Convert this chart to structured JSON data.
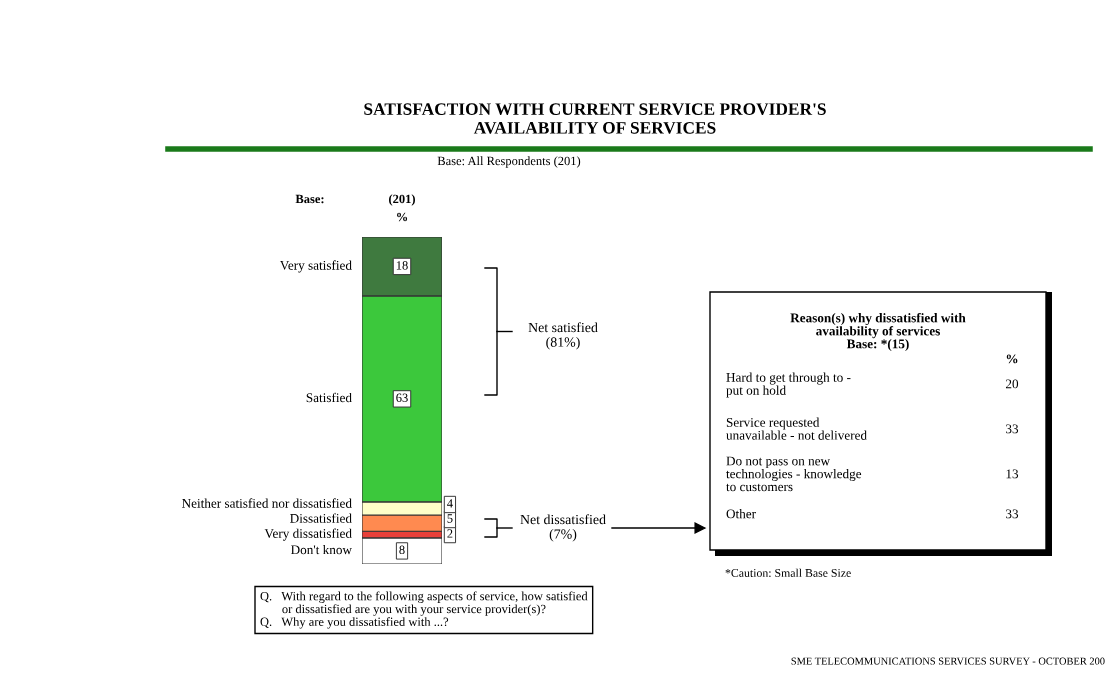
{
  "chart_data": {
    "type": "bar",
    "stacked": true,
    "data_labels": true,
    "title": "SATISFACTION WITH CURRENT SERVICE PROVIDER'S\nAVAILABILITY OF SERVICES",
    "subtitle": "Base: All Respondents (201)",
    "categories": [
      null
    ],
    "series": [
      {
        "name": "Don't know",
        "color": "#ffffff",
        "values": [
          8
        ]
      },
      {
        "name": "Very dissatisfied",
        "color": "#e8403a",
        "values": [
          2
        ]
      },
      {
        "name": "Dissatisfied",
        "color": "#ff8a50",
        "values": [
          5
        ]
      },
      {
        "name": "Neither satisfied nor dissatisfied",
        "color": "#ffffc8",
        "values": [
          4
        ]
      },
      {
        "name": "Satisfied",
        "color": "#3cc83c",
        "values": [
          63
        ]
      },
      {
        "name": "Very satisfied",
        "color": "#3f7a3f",
        "values": [
          18
        ]
      }
    ],
    "annotations": [
      "Base:",
      "(201)",
      "%",
      "Net satisfied\n(81%)",
      "Net dissatisfied\n(7%)",
      "Reason(s) why dissatisfied with\navailability of services\nBase: *(15)",
      "%",
      "Hard to get through to -\nput on hold",
      "20",
      "Service requested\nunavailable - not delivered",
      "33",
      "Do not pass on new\ntechnologies - knowledge\nto customers",
      "13",
      "Other",
      "33",
      "*Caution: Small Base Size",
      "Q.   With regard to the following aspects of service, how satisfied\n       or dissatisfied are you with your service provider(s)?\nQ.   Why are you dissatisfied with ...?",
      "SME TELECOMMUNICATIONS SERVICES SURVEY - OCTOBER 200"
    ]
  }
}
